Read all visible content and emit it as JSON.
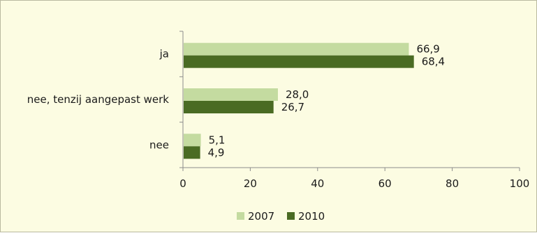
{
  "chart_data": {
    "type": "bar",
    "orientation": "horizontal",
    "categories": [
      "ja",
      "nee, tenzij aangepast werk",
      "nee"
    ],
    "series": [
      {
        "name": "2007",
        "values": [
          66.9,
          28.0,
          5.1
        ],
        "labels": [
          "66,9",
          "28,0",
          "5,1"
        ],
        "color": "#c4dba0"
      },
      {
        "name": "2010",
        "values": [
          68.4,
          26.7,
          4.9
        ],
        "labels": [
          "68,4",
          "26,7",
          "4,9"
        ],
        "color": "#4a6b23"
      }
    ],
    "xlim": [
      0,
      100
    ],
    "xticks": [
      0,
      20,
      40,
      60,
      80,
      100
    ],
    "xtick_labels": [
      "0",
      "20",
      "40",
      "60",
      "80",
      "100"
    ],
    "grid": false,
    "legend_position": "bottom",
    "background": "#fcfce2"
  }
}
